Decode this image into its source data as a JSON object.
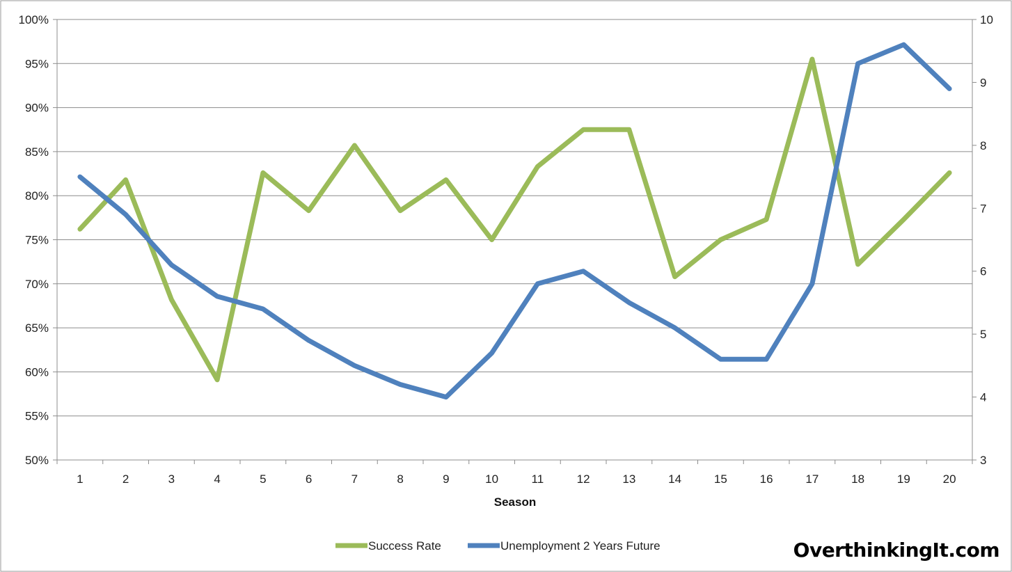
{
  "chart_data": {
    "type": "line",
    "xlabel": "Season",
    "x": [
      1,
      2,
      3,
      4,
      5,
      6,
      7,
      8,
      9,
      10,
      11,
      12,
      13,
      14,
      15,
      16,
      17,
      18,
      19,
      20
    ],
    "y_left": {
      "ticks": [
        "50%",
        "55%",
        "60%",
        "65%",
        "70%",
        "75%",
        "80%",
        "85%",
        "90%",
        "95%",
        "100%"
      ],
      "ylim": [
        0.5,
        1.0
      ]
    },
    "y_right": {
      "ticks": [
        "3",
        "4",
        "5",
        "6",
        "7",
        "8",
        "9",
        "10"
      ],
      "ylim": [
        3,
        10
      ]
    },
    "grid": true,
    "legend_position": "bottom-center",
    "series": [
      {
        "name": "Success Rate",
        "axis": "left",
        "color": "#9bbb59",
        "values": [
          0.762,
          0.818,
          0.682,
          0.591,
          0.826,
          0.783,
          0.857,
          0.783,
          0.818,
          0.75,
          0.833,
          0.875,
          0.875,
          0.708,
          0.75,
          0.773,
          0.955,
          0.722,
          0.773,
          0.826
        ]
      },
      {
        "name": "Unemployment 2 Years Future",
        "axis": "right",
        "color": "#4f81bd",
        "values": [
          7.5,
          6.9,
          6.1,
          5.6,
          5.4,
          4.9,
          4.5,
          4.2,
          4.0,
          4.7,
          5.8,
          6.0,
          5.5,
          5.1,
          4.6,
          4.6,
          5.8,
          9.3,
          9.6,
          8.9
        ]
      }
    ]
  },
  "watermark": "OverthinkingIt.com"
}
